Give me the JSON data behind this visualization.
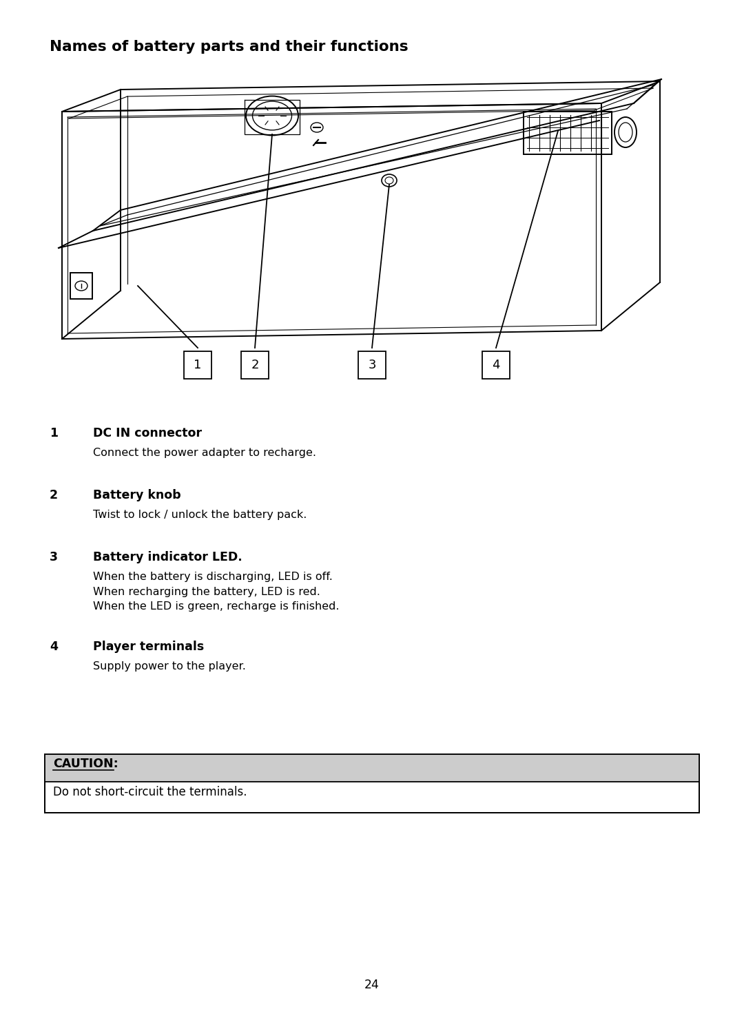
{
  "title": "Names of battery parts and their functions",
  "title_fontsize": 15.5,
  "items": [
    {
      "num": "1",
      "label": "DC IN connector",
      "desc": "Connect the power adapter to recharge."
    },
    {
      "num": "2",
      "label": "Battery knob",
      "desc": "Twist to lock / unlock the battery pack."
    },
    {
      "num": "3",
      "label": "Battery indicator LED.",
      "desc": "When the battery is discharging, LED is off.\nWhen recharging the battery, LED is red.\nWhen the LED is green, recharge is finished."
    },
    {
      "num": "4",
      "label": "Player terminals",
      "desc": "Supply power to the player."
    }
  ],
  "caution_label": "CAUTION:",
  "caution_text": "Do not short-circuit the terminals.",
  "page_number": "24",
  "bg_color": "#ffffff",
  "text_color": "#000000",
  "line_color": "#000000",
  "caution_bg": "#cccccc",
  "label_fontsize": 12.5,
  "desc_fontsize": 11.5,
  "num_fontsize": 12.5
}
